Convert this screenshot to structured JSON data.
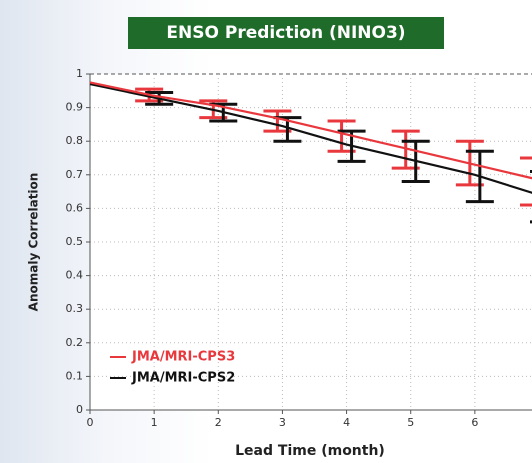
{
  "chart_data": {
    "type": "line",
    "title": "ENSO Prediction (NINO3)",
    "xlabel": "Lead Time (month)",
    "ylabel": "Anomaly Correlation",
    "x": [
      0,
      1,
      2,
      3,
      4,
      5,
      6,
      7
    ],
    "xlim": [
      0,
      7
    ],
    "xticks": [
      0,
      1,
      2,
      3,
      4,
      5,
      6
    ],
    "ylim": [
      0,
      1
    ],
    "yticks": [
      0,
      0.1,
      0.2,
      0.3,
      0.4,
      0.5,
      0.6,
      0.7,
      0.8,
      0.9,
      1
    ],
    "grid": true,
    "legend": "lower left",
    "series": [
      {
        "name": "JMA/MRI-CPS3",
        "color": "#e8383d",
        "values": [
          0.975,
          0.935,
          0.905,
          0.865,
          0.82,
          0.775,
          0.73,
          0.685
        ],
        "lower": [
          null,
          0.92,
          0.87,
          0.83,
          0.77,
          0.72,
          0.67,
          0.61
        ],
        "upper": [
          null,
          0.955,
          0.92,
          0.89,
          0.86,
          0.83,
          0.8,
          0.75
        ]
      },
      {
        "name": "JMA/MRI-CPS2",
        "color": "#111111",
        "values": [
          0.97,
          0.93,
          0.89,
          0.845,
          0.79,
          0.745,
          0.7,
          0.64
        ],
        "lower": [
          null,
          0.91,
          0.86,
          0.8,
          0.74,
          0.68,
          0.62,
          0.56
        ],
        "upper": [
          null,
          0.945,
          0.91,
          0.87,
          0.83,
          0.8,
          0.77,
          0.71
        ]
      }
    ]
  }
}
